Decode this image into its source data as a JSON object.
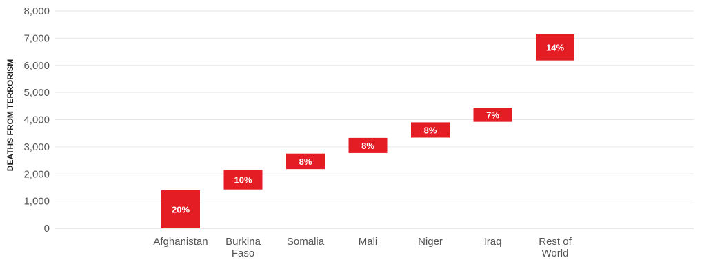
{
  "chart_data": {
    "type": "bar",
    "subtype": "waterfall",
    "ylabel": "DEATHS FROM TERRORISM",
    "ylim": [
      0,
      8000
    ],
    "yticks": [
      "0",
      "1,000",
      "2,000",
      "3,000",
      "4,000",
      "5,000",
      "6,000",
      "7,000",
      "8,000"
    ],
    "grid": true,
    "bar_color": "#e41c23",
    "categories": [
      {
        "lines": [
          "Afghanistan"
        ]
      },
      {
        "lines": [
          "Burkina",
          "Faso"
        ]
      },
      {
        "lines": [
          "Somalia"
        ]
      },
      {
        "lines": [
          "Mali"
        ]
      },
      {
        "lines": [
          "Niger"
        ]
      },
      {
        "lines": [
          "Iraq"
        ]
      },
      {
        "lines": [
          "Rest of",
          "World"
        ]
      }
    ],
    "bars": [
      {
        "start": 0,
        "end": 1400,
        "label": "20%"
      },
      {
        "start": 1430,
        "end": 2150,
        "label": "10%"
      },
      {
        "start": 2180,
        "end": 2750,
        "label": "8%"
      },
      {
        "start": 2770,
        "end": 3330,
        "label": "8%"
      },
      {
        "start": 3340,
        "end": 3900,
        "label": "8%"
      },
      {
        "start": 3920,
        "end": 4440,
        "label": "7%"
      },
      {
        "start": 6180,
        "end": 7150,
        "label": "14%"
      }
    ]
  }
}
